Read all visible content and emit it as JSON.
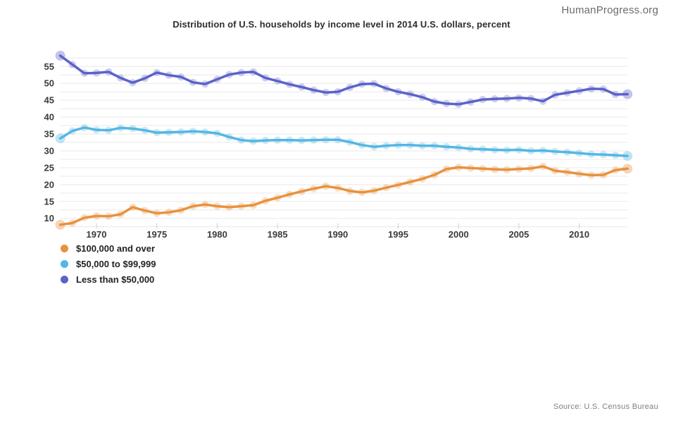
{
  "page": {
    "brand": "HumanProgress.org",
    "source": "Source: U.S. Census Bureau"
  },
  "chart_data": {
    "type": "line",
    "title": "Distribution of U.S. households by income level in 2014 U.S. dollars, percent",
    "xlabel": "",
    "ylabel": "",
    "xlim": [
      1967,
      2014
    ],
    "ylim": [
      7.5,
      57.5
    ],
    "xticks": [
      1970,
      1975,
      1980,
      1985,
      1990,
      1995,
      2000,
      2005,
      2010
    ],
    "yticks": [
      10,
      15,
      20,
      25,
      30,
      35,
      40,
      45,
      50,
      55
    ],
    "grid": "horizontal",
    "grid_minor_step": 2.5,
    "legend_position": "bottom-left",
    "x": [
      1967,
      1968,
      1969,
      1970,
      1971,
      1972,
      1973,
      1974,
      1975,
      1976,
      1977,
      1978,
      1979,
      1980,
      1981,
      1982,
      1983,
      1984,
      1985,
      1986,
      1987,
      1988,
      1989,
      1990,
      1991,
      1992,
      1993,
      1994,
      1995,
      1996,
      1997,
      1998,
      1999,
      2000,
      2001,
      2002,
      2003,
      2004,
      2005,
      2006,
      2007,
      2008,
      2009,
      2010,
      2011,
      2012,
      2013,
      2014
    ],
    "series": [
      {
        "name": "$100,000 and over",
        "color": "#E8923E",
        "values": [
          8.1,
          8.6,
          10.2,
          10.7,
          10.6,
          11.2,
          13.3,
          12.3,
          11.5,
          11.8,
          12.4,
          13.6,
          14.1,
          13.6,
          13.3,
          13.6,
          13.9,
          15.2,
          16.1,
          17.1,
          18.0,
          18.8,
          19.5,
          19.0,
          18.1,
          17.7,
          18.2,
          19.1,
          19.9,
          20.8,
          21.7,
          22.9,
          24.6,
          25.1,
          24.9,
          24.7,
          24.5,
          24.4,
          24.6,
          24.8,
          25.4,
          24.1,
          23.7,
          23.2,
          22.8,
          22.9,
          24.3,
          24.7
        ]
      },
      {
        "name": "$50,000 to $99,999",
        "color": "#54B7E3",
        "values": [
          33.7,
          35.9,
          36.9,
          36.2,
          36.1,
          36.8,
          36.6,
          36.1,
          35.4,
          35.5,
          35.6,
          35.8,
          35.6,
          35.2,
          34.1,
          33.2,
          32.9,
          33.1,
          33.2,
          33.2,
          33.1,
          33.2,
          33.3,
          33.3,
          32.6,
          31.7,
          31.2,
          31.5,
          31.7,
          31.7,
          31.5,
          31.5,
          31.2,
          31.0,
          30.6,
          30.5,
          30.3,
          30.2,
          30.3,
          30.0,
          30.1,
          29.8,
          29.6,
          29.3,
          29.0,
          28.9,
          28.7,
          28.5
        ]
      },
      {
        "name": "Less than $50,000",
        "color": "#5C62CA",
        "values": [
          58.2,
          55.6,
          53.0,
          53.1,
          53.4,
          51.6,
          50.2,
          51.5,
          53.2,
          52.4,
          51.9,
          50.3,
          49.8,
          51.2,
          52.6,
          53.2,
          53.4,
          51.6,
          50.7,
          49.7,
          48.9,
          48.0,
          47.3,
          47.5,
          48.8,
          49.8,
          49.9,
          48.5,
          47.5,
          46.8,
          45.9,
          44.6,
          44.0,
          43.8,
          44.5,
          45.2,
          45.4,
          45.5,
          45.7,
          45.5,
          44.7,
          46.6,
          47.2,
          47.8,
          48.4,
          48.3,
          46.7,
          46.8
        ]
      }
    ],
    "style": {
      "grid_color": "#e9e9e9",
      "tick_color": "#cfcfcf",
      "axis_label_color": "#3b3b3b",
      "title_color": "#2e2e2e",
      "marker_opacity": 0.3
    }
  }
}
